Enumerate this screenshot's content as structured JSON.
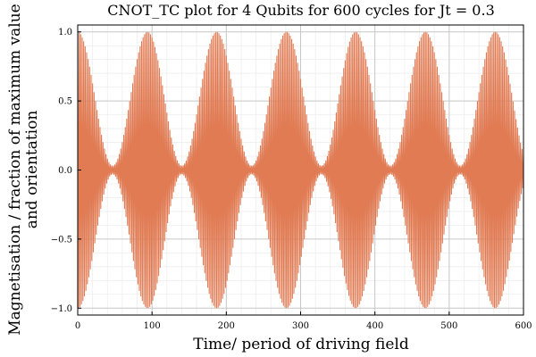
{
  "chart_data": {
    "type": "line",
    "title": "CNOT_TC plot for 4 Qubits for 600 cycles for Jt = 0.3",
    "xlabel": "Time/ period of driving field",
    "ylabel_lines": [
      "Magnetisation / fraction of maximum value",
      "and orientation"
    ],
    "xlim": [
      0,
      600
    ],
    "ylim": [
      -1.05,
      1.05
    ],
    "xticks": [
      0,
      100,
      200,
      300,
      400,
      500,
      600
    ],
    "yticks": [
      -1.0,
      -0.5,
      0.0,
      0.5,
      1.0
    ],
    "ytick_labels": [
      "−1.0",
      "−0.5",
      "0.0",
      "0.5",
      "1.0"
    ],
    "grid": true,
    "legend": "none",
    "series": [
      {
        "color": "#e07b54",
        "envelope_peaks_x": [
          0,
          94,
          187,
          281,
          374,
          468,
          562
        ],
        "envelope_peak_amplitude": [
          1.0,
          1.0,
          1.0,
          1.0,
          1.0,
          1.0,
          1.0
        ],
        "envelope_node_x": [
          47,
          140,
          234,
          328,
          421,
          515
        ],
        "envelope_node_amplitude": 0.03,
        "oscillation": "sign alternates every cycle",
        "cycles": 600
      }
    ]
  }
}
